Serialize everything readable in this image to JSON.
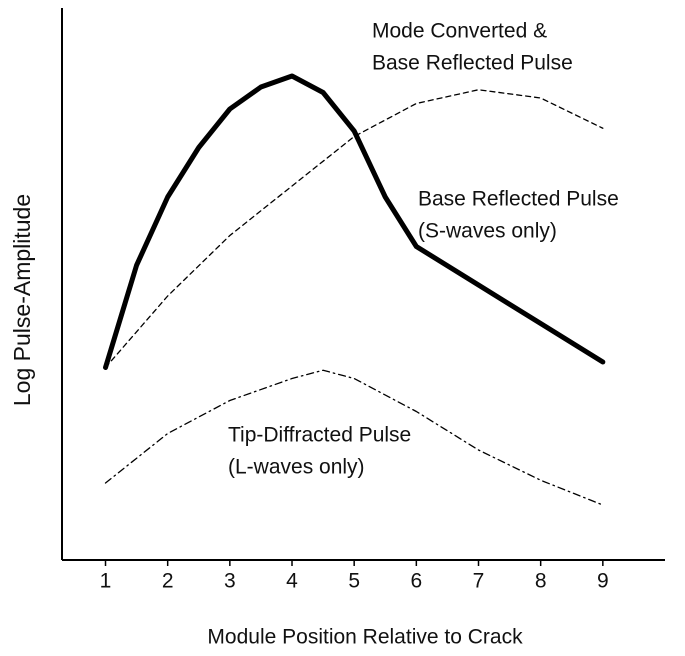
{
  "chart_data": {
    "type": "line",
    "xlabel": "Module Position Relative to Crack",
    "ylabel": "Log Pulse-Amplitude",
    "xlim": [
      0.3,
      10
    ],
    "xticks": [
      1,
      2,
      3,
      4,
      5,
      6,
      7,
      8,
      9
    ],
    "ylim": [
      0,
      100
    ],
    "series": [
      {
        "color": "#000000",
        "style": "solid",
        "x": [
          1,
          1.5,
          2,
          2.5,
          3,
          3.5,
          4,
          4.5,
          5,
          5.5,
          6,
          7,
          8,
          9
        ],
        "values": [
          35,
          53.6,
          66,
          75,
          82,
          86,
          88,
          85,
          78,
          66,
          57,
          50,
          43,
          36
        ]
      },
      {
        "color": "#000000",
        "style": "dashed",
        "x": [
          1,
          2,
          3,
          4,
          5,
          6,
          7,
          8,
          9
        ],
        "values": [
          35,
          48,
          59,
          68,
          77,
          83,
          85.5,
          84,
          78.5
        ]
      },
      {
        "color": "#000000",
        "style": "dashdot",
        "x": [
          1,
          2,
          3,
          4,
          4.5,
          5,
          6,
          7,
          8,
          9
        ],
        "values": [
          14,
          23,
          29,
          33,
          34.5,
          33,
          27,
          20,
          14.5,
          10
        ]
      }
    ],
    "annotations": [
      {
        "lines": [
          "Mode Converted &",
          "Base Reflected Pulse"
        ]
      },
      {
        "lines": [
          "Base Reflected Pulse",
          "(S-waves only)"
        ]
      },
      {
        "lines": [
          "Tip-Diffracted Pulse",
          "(L-waves only)"
        ]
      }
    ]
  }
}
